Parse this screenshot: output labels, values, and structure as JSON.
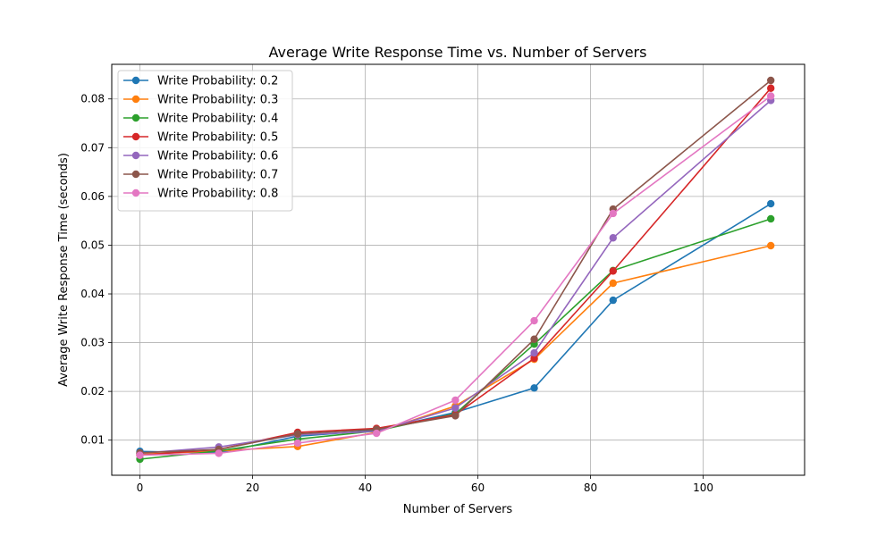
{
  "chart_data": {
    "type": "line",
    "title": "Average Write Response Time vs. Number of Servers",
    "xlabel": "Number of Servers",
    "ylabel": "Average Write Response Time (seconds)",
    "xlim": [
      -5,
      118
    ],
    "ylim": [
      0.0028,
      0.0871
    ],
    "xticks": [
      0,
      20,
      40,
      60,
      80,
      100
    ],
    "yticks": [
      0.01,
      0.02,
      0.03,
      0.04,
      0.05,
      0.06,
      0.07,
      0.08
    ],
    "grid": true,
    "legend_position": "top-left",
    "x": [
      0,
      14,
      28,
      42,
      56,
      70,
      84,
      112
    ],
    "series": [
      {
        "name": "Write Probability: 0.2",
        "color": "#1f77b4",
        "values": [
          0.0077,
          0.0074,
          0.0108,
          0.012,
          0.0157,
          0.0207,
          0.0387,
          0.0585
        ]
      },
      {
        "name": "Write Probability: 0.3",
        "color": "#ff7f0e",
        "values": [
          0.0071,
          0.0078,
          0.0087,
          0.0116,
          0.017,
          0.0266,
          0.0422,
          0.0499
        ]
      },
      {
        "name": "Write Probability: 0.4",
        "color": "#2ca02c",
        "values": [
          0.0061,
          0.0078,
          0.0102,
          0.0119,
          0.0154,
          0.0297,
          0.0448,
          0.0554
        ]
      },
      {
        "name": "Write Probability: 0.5",
        "color": "#d62728",
        "values": [
          0.0069,
          0.0081,
          0.0116,
          0.0124,
          0.0152,
          0.0268,
          0.0447,
          0.0822
        ]
      },
      {
        "name": "Write Probability: 0.6",
        "color": "#9467bd",
        "values": [
          0.0073,
          0.0086,
          0.0111,
          0.0118,
          0.0166,
          0.0279,
          0.0515,
          0.0797
        ]
      },
      {
        "name": "Write Probability: 0.7",
        "color": "#8c564b",
        "values": [
          0.0074,
          0.0081,
          0.0113,
          0.0122,
          0.015,
          0.0307,
          0.0574,
          0.0838
        ]
      },
      {
        "name": "Write Probability: 0.8",
        "color": "#e377c2",
        "values": [
          0.0069,
          0.0073,
          0.0094,
          0.0114,
          0.0182,
          0.0345,
          0.0565,
          0.0806
        ]
      }
    ]
  }
}
